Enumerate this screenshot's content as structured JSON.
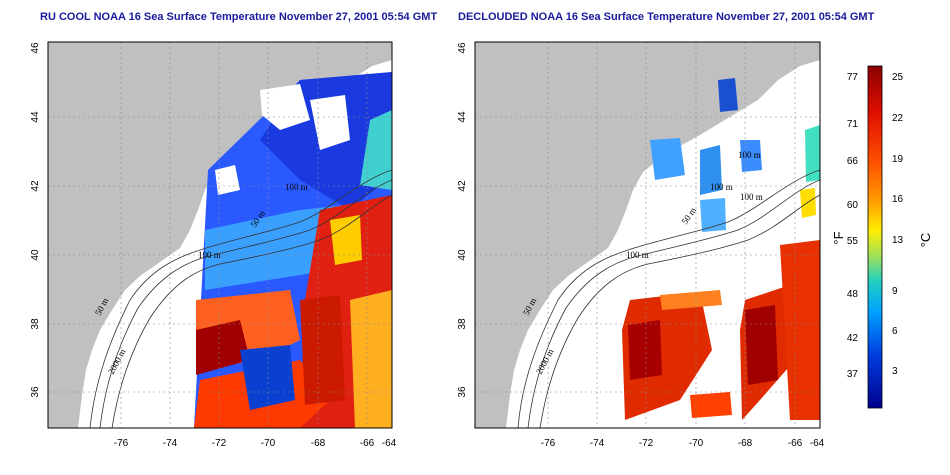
{
  "panels": [
    {
      "title": "RU COOL NOAA 16 Sea Surface Temperature November 27, 2001 05:54 GMT",
      "x_ticks": [
        "-76",
        "-74",
        "-72",
        "-70",
        "-68",
        "-66",
        "-64"
      ],
      "y_ticks": [
        "36",
        "38",
        "40",
        "42",
        "44",
        "46"
      ],
      "contour_labels": [
        "50 m",
        "2000 m",
        "100 m",
        "50 m",
        "100 m"
      ]
    },
    {
      "title": "DECLOUDED NOAA 16 Sea Surface Temperature November 27, 2001 05:54 GMT",
      "x_ticks": [
        "-76",
        "-74",
        "-72",
        "-70",
        "-68",
        "-66",
        "-64"
      ],
      "y_ticks": [
        "36",
        "38",
        "40",
        "42",
        "44",
        "46"
      ],
      "contour_labels": [
        "50 m",
        "2000 m",
        "100 m",
        "100 m",
        "100 m",
        "50 m",
        "100 m"
      ]
    }
  ],
  "colorbar": {
    "fahrenheit_labels": [
      "77",
      "71",
      "66",
      "60",
      "55",
      "48",
      "42",
      "37"
    ],
    "celsius_labels": [
      "25",
      "22",
      "19",
      "16",
      "13",
      "9",
      "6",
      "3"
    ],
    "fahrenheit_unit": "°F",
    "celsius_unit": "°C",
    "colors": [
      "#8b0000",
      "#ff3000",
      "#ffb000",
      "#ffff00",
      "#00e0c0",
      "#0090ff",
      "#0000c0",
      "#000080"
    ]
  },
  "map_colors": {
    "land": "#c0c0c0",
    "shelf": "#ffffff",
    "ocean_frame": "#ffffff"
  }
}
